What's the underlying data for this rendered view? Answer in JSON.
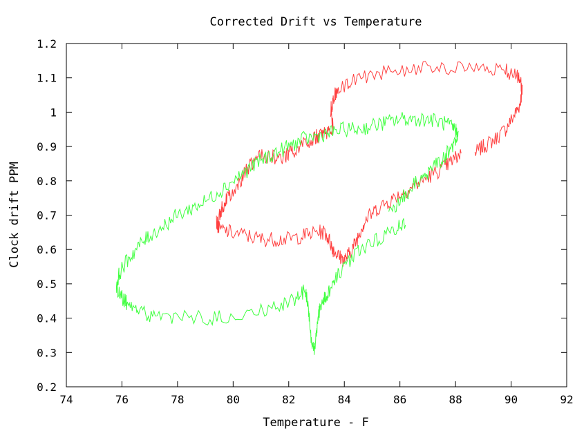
{
  "chart_data": {
    "type": "line",
    "title": "Corrected Drift vs Temperature",
    "xlabel": "Temperature - F",
    "ylabel": "Clock drift PPM",
    "xlim": [
      74,
      92
    ],
    "ylim": [
      0.2,
      1.2
    ],
    "xticks": [
      74,
      76,
      78,
      80,
      82,
      84,
      86,
      88,
      90,
      92
    ],
    "yticks": [
      0.2,
      0.3,
      0.4,
      0.5,
      0.6,
      0.7,
      0.8,
      0.9,
      1.0,
      1.1,
      1.2
    ],
    "xtick_labels": [
      "74",
      "76",
      "78",
      "80",
      "82",
      "84",
      "86",
      "88",
      "90",
      "92"
    ],
    "ytick_labels": [
      "0.2",
      "0.3",
      "0.4",
      "0.5",
      "0.6",
      "0.7",
      "0.8",
      "0.9",
      "1",
      "1.1",
      "1.2"
    ],
    "grid": false,
    "legend": "none",
    "series": [
      {
        "color": "#ff4040",
        "x": [
          88.7,
          89.0,
          89.4,
          89.8,
          90.1,
          90.3,
          90.4,
          90.35,
          90.2,
          89.8,
          89.0,
          88.0,
          87.0,
          86.0,
          85.0,
          84.2,
          83.8,
          83.6,
          83.5,
          83.6,
          83.4,
          83.2,
          83.0,
          82.6,
          82.2,
          82.0,
          81.8,
          81.4,
          81.0,
          80.7,
          80.4,
          80.1,
          79.8,
          79.6,
          79.5,
          79.4,
          79.5,
          79.9,
          80.5,
          81.0,
          81.5,
          82.0,
          82.5,
          83.0,
          83.3,
          83.5,
          83.6,
          83.8,
          84.0,
          84.2,
          84.4,
          84.6,
          84.8,
          85.2,
          85.6,
          86.0,
          86.4,
          86.8,
          87.2,
          87.6,
          87.9,
          88.2
        ],
        "y": [
          0.88,
          0.9,
          0.92,
          0.95,
          0.99,
          1.02,
          1.06,
          1.09,
          1.11,
          1.12,
          1.12,
          1.13,
          1.13,
          1.12,
          1.11,
          1.09,
          1.07,
          1.04,
          1.0,
          0.96,
          0.94,
          0.93,
          0.93,
          0.91,
          0.89,
          0.88,
          0.87,
          0.87,
          0.87,
          0.85,
          0.82,
          0.78,
          0.75,
          0.72,
          0.7,
          0.68,
          0.66,
          0.65,
          0.64,
          0.63,
          0.63,
          0.63,
          0.64,
          0.65,
          0.65,
          0.62,
          0.6,
          0.58,
          0.57,
          0.59,
          0.62,
          0.66,
          0.69,
          0.72,
          0.74,
          0.76,
          0.78,
          0.8,
          0.82,
          0.84,
          0.86,
          0.88
        ]
      },
      {
        "color": "#40ff40",
        "x": [
          86.2,
          85.8,
          85.2,
          84.6,
          84.2,
          83.8,
          83.5,
          83.3,
          83.1,
          83.0,
          82.9,
          82.8,
          82.7,
          82.6,
          82.3,
          81.8,
          81.0,
          80.0,
          79.0,
          78.0,
          77.2,
          76.6,
          76.2,
          76.0,
          75.8,
          75.9,
          76.2,
          76.6,
          77.0,
          77.5,
          78.0,
          78.5,
          79.0,
          79.5,
          80.0,
          80.5,
          81.0,
          81.5,
          82.0,
          82.5,
          83.0,
          83.5,
          84.0,
          84.5,
          85.0,
          85.5,
          86.0,
          86.5,
          87.0,
          87.5,
          87.8,
          88.0,
          88.1,
          87.9,
          87.6,
          87.2,
          86.8,
          86.4,
          86.0,
          85.6
        ],
        "y": [
          0.68,
          0.66,
          0.63,
          0.6,
          0.57,
          0.53,
          0.49,
          0.46,
          0.42,
          0.36,
          0.3,
          0.34,
          0.43,
          0.48,
          0.46,
          0.44,
          0.42,
          0.41,
          0.4,
          0.4,
          0.4,
          0.42,
          0.44,
          0.46,
          0.49,
          0.53,
          0.57,
          0.61,
          0.64,
          0.67,
          0.7,
          0.72,
          0.74,
          0.77,
          0.8,
          0.83,
          0.86,
          0.88,
          0.9,
          0.92,
          0.93,
          0.94,
          0.95,
          0.95,
          0.96,
          0.97,
          0.98,
          0.98,
          0.98,
          0.97,
          0.96,
          0.95,
          0.93,
          0.9,
          0.87,
          0.84,
          0.81,
          0.78,
          0.74,
          0.71
        ]
      }
    ]
  }
}
